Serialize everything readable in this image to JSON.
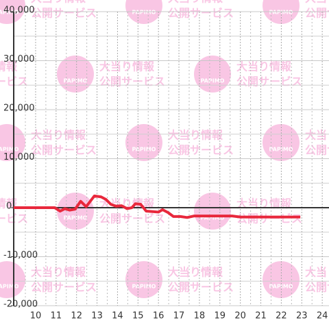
{
  "chart_data": {
    "type": "line",
    "x": [
      8.93,
      10.93,
      11.2,
      11.43,
      11.67,
      11.93,
      12.2,
      12.47,
      12.87,
      13.2,
      13.43,
      13.67,
      13.93,
      14.2,
      14.47,
      14.7,
      14.87,
      15.13,
      15.4,
      15.73,
      16.0,
      16.2,
      16.47,
      16.73,
      17.07,
      17.4,
      17.73,
      18.4,
      19.6,
      20.0,
      20.93,
      22.93
    ],
    "series": [
      {
        "color": "#e8283c",
        "values": [
          0,
          0,
          -700,
          -200,
          -500,
          -300,
          1300,
          200,
          2400,
          2200,
          1700,
          700,
          300,
          400,
          -200,
          0,
          800,
          700,
          -700,
          -800,
          -900,
          -400,
          -1000,
          -1800,
          -1800,
          -2000,
          -1700,
          -1700,
          -1700,
          -1900,
          -1900,
          -1900
        ]
      }
    ],
    "xlim": [
      8.93,
      24.33
    ],
    "ylim": [
      -20000,
      40000
    ],
    "xticks": [
      10,
      11,
      12,
      13,
      14,
      15,
      16,
      17,
      18,
      19,
      20,
      21,
      22,
      23,
      24
    ],
    "minor_xticks": [
      9.5,
      10.5,
      11.5,
      12.5,
      13.5,
      14.5,
      15.5,
      16.5,
      17.5,
      18.5,
      19.5,
      20.5,
      21.5,
      22.5,
      23.5
    ],
    "yticks": [
      {
        "value": -20000,
        "label": "-20,000"
      },
      {
        "value": -10000,
        "label": "-10,000"
      },
      0,
      {
        "value": 10000,
        "label": "10,000"
      },
      {
        "value": 20000,
        "label": "20,000"
      },
      {
        "value": 30000,
        "label": "30,000"
      },
      {
        "value": 40000,
        "label": "40,000"
      }
    ],
    "minor_yticks": [
      -15000,
      -5000,
      5000,
      15000,
      25000,
      35000
    ],
    "grid": true,
    "watermark": {
      "brand": "PAPIMO",
      "lines": [
        "大当り情報",
        "公開サービス"
      ]
    }
  }
}
